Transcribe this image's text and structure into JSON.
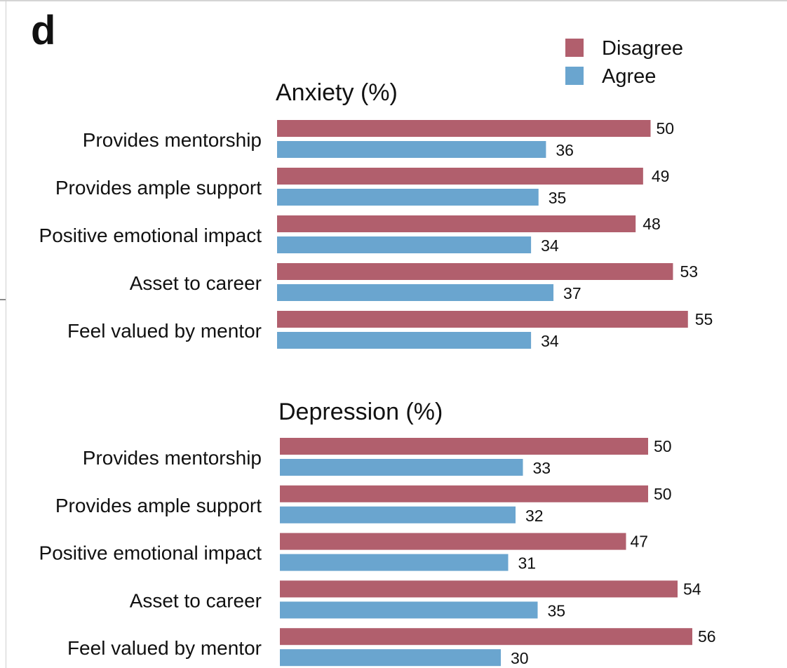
{
  "figure": {
    "panel_label": "d"
  },
  "chart_data": [
    {
      "type": "bar",
      "orientation": "horizontal",
      "title": "Anxiety (%)",
      "categories": [
        "Provides mentorship",
        "Provides ample support",
        "Positive emotional impact",
        "Asset to career",
        "Feel valued by mentor"
      ],
      "series": [
        {
          "name": "Disagree",
          "color": "#b15f6d",
          "values": [
            50,
            49,
            48,
            53,
            55
          ]
        },
        {
          "name": "Agree",
          "color": "#6aa5cf",
          "values": [
            36,
            35,
            34,
            37,
            34
          ]
        }
      ],
      "data_labels": true,
      "axes_visible": false,
      "legend_position": "top-right"
    },
    {
      "type": "bar",
      "orientation": "horizontal",
      "title": "Depression (%)",
      "categories": [
        "Provides mentorship",
        "Provides ample support",
        "Positive emotional impact",
        "Asset to career",
        "Feel valued by mentor"
      ],
      "series": [
        {
          "name": "Disagree",
          "color": "#b15f6d",
          "values": [
            50,
            50,
            47,
            54,
            56
          ]
        },
        {
          "name": "Agree",
          "color": "#6aa5cf",
          "values": [
            33,
            32,
            31,
            35,
            30
          ]
        }
      ],
      "data_labels": true,
      "axes_visible": false
    }
  ]
}
